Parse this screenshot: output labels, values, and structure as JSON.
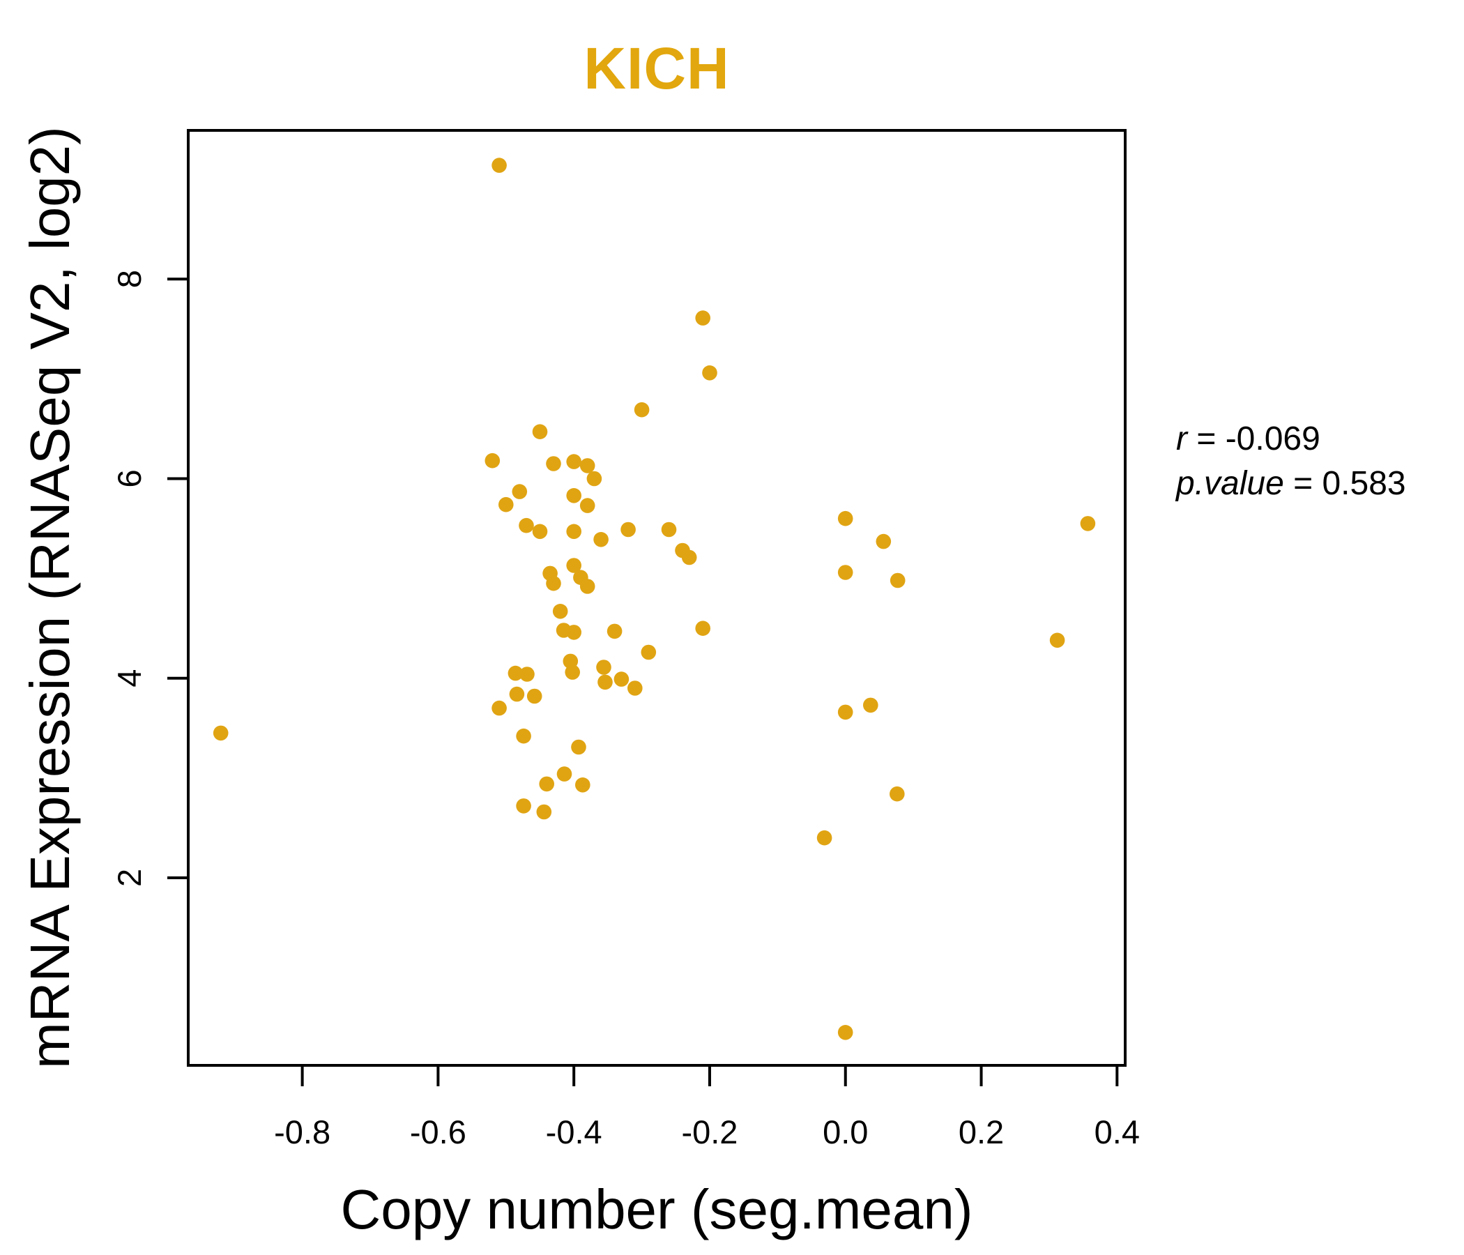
{
  "figure": {
    "title": "KICH",
    "x_axis_label": "Copy number (seg.mean)",
    "y_axis_label": "mRNA Expression (RNASeq V2, log2)",
    "annotation": {
      "line1": {
        "var": "r",
        "eq": " = ",
        "value": "-0.069"
      },
      "line2": {
        "var": "p.value",
        "eq": " = ",
        "value": "0.583"
      }
    },
    "colors": {
      "title": "#E2A70E",
      "points": "#E0A413",
      "axis": "#000000",
      "background": "#FFFFFF"
    }
  },
  "chart_data": {
    "type": "scatter",
    "title": "KICH",
    "xlabel": "Copy number (seg.mean)",
    "ylabel": "mRNA Expression (RNASeq V2, log2)",
    "xlim": [
      -0.968,
      0.412
    ],
    "ylim": [
      0.12,
      9.49
    ],
    "x_ticks": [
      -0.8,
      -0.6,
      -0.4,
      -0.2,
      0.0,
      0.2,
      0.4
    ],
    "x_tick_labels": [
      "-0.8",
      "-0.6",
      "-0.4",
      "-0.2",
      "0.0",
      "0.2",
      "0.4"
    ],
    "y_ticks": [
      2,
      4,
      6,
      8
    ],
    "y_tick_labels": [
      "2",
      "4",
      "6",
      "8"
    ],
    "grid": false,
    "legend": "none",
    "marker": "filled-circle",
    "marker_radius_px": 10.8,
    "stats": {
      "r": -0.069,
      "p_value": 0.583
    },
    "points": [
      [
        -0.51,
        9.14
      ],
      [
        -0.21,
        7.61
      ],
      [
        -0.2,
        7.06
      ],
      [
        -0.3,
        6.69
      ],
      [
        -0.45,
        6.47
      ],
      [
        -0.52,
        6.18
      ],
      [
        -0.43,
        6.15
      ],
      [
        -0.4,
        6.17
      ],
      [
        -0.38,
        6.13
      ],
      [
        -0.37,
        6.0
      ],
      [
        -0.48,
        5.87
      ],
      [
        -0.4,
        5.83
      ],
      [
        -0.38,
        5.73
      ],
      [
        -0.5,
        5.74
      ],
      [
        -0.47,
        5.53
      ],
      [
        -0.45,
        5.47
      ],
      [
        -0.4,
        5.47
      ],
      [
        -0.36,
        5.39
      ],
      [
        -0.32,
        5.49
      ],
      [
        -0.26,
        5.49
      ],
      [
        -0.24,
        5.28
      ],
      [
        -0.23,
        5.21
      ],
      [
        -0.4,
        5.13
      ],
      [
        -0.435,
        5.05
      ],
      [
        -0.43,
        4.95
      ],
      [
        -0.39,
        5.01
      ],
      [
        -0.38,
        4.92
      ],
      [
        -0.42,
        4.67
      ],
      [
        -0.415,
        4.48
      ],
      [
        -0.4,
        4.46
      ],
      [
        -0.34,
        4.47
      ],
      [
        -0.21,
        4.5
      ],
      [
        -0.29,
        4.26
      ],
      [
        -0.405,
        4.17
      ],
      [
        -0.402,
        4.06
      ],
      [
        -0.356,
        4.11
      ],
      [
        -0.354,
        3.96
      ],
      [
        -0.33,
        3.99
      ],
      [
        -0.31,
        3.9
      ],
      [
        -0.486,
        4.05
      ],
      [
        -0.469,
        4.04
      ],
      [
        -0.484,
        3.84
      ],
      [
        -0.458,
        3.82
      ],
      [
        -0.51,
        3.7
      ],
      [
        -0.474,
        3.42
      ],
      [
        -0.393,
        3.31
      ],
      [
        -0.414,
        3.04
      ],
      [
        -0.44,
        2.94
      ],
      [
        -0.387,
        2.93
      ],
      [
        -0.474,
        2.72
      ],
      [
        -0.444,
        2.66
      ],
      [
        -0.92,
        3.45
      ],
      [
        0.0,
        5.6
      ],
      [
        0.056,
        5.37
      ],
      [
        0.0,
        5.06
      ],
      [
        0.077,
        4.98
      ],
      [
        0.357,
        5.55
      ],
      [
        0.312,
        4.38
      ],
      [
        0.0,
        3.66
      ],
      [
        0.037,
        3.73
      ],
      [
        0.076,
        2.84
      ],
      [
        -0.031,
        2.4
      ],
      [
        0.0,
        0.45
      ]
    ]
  }
}
